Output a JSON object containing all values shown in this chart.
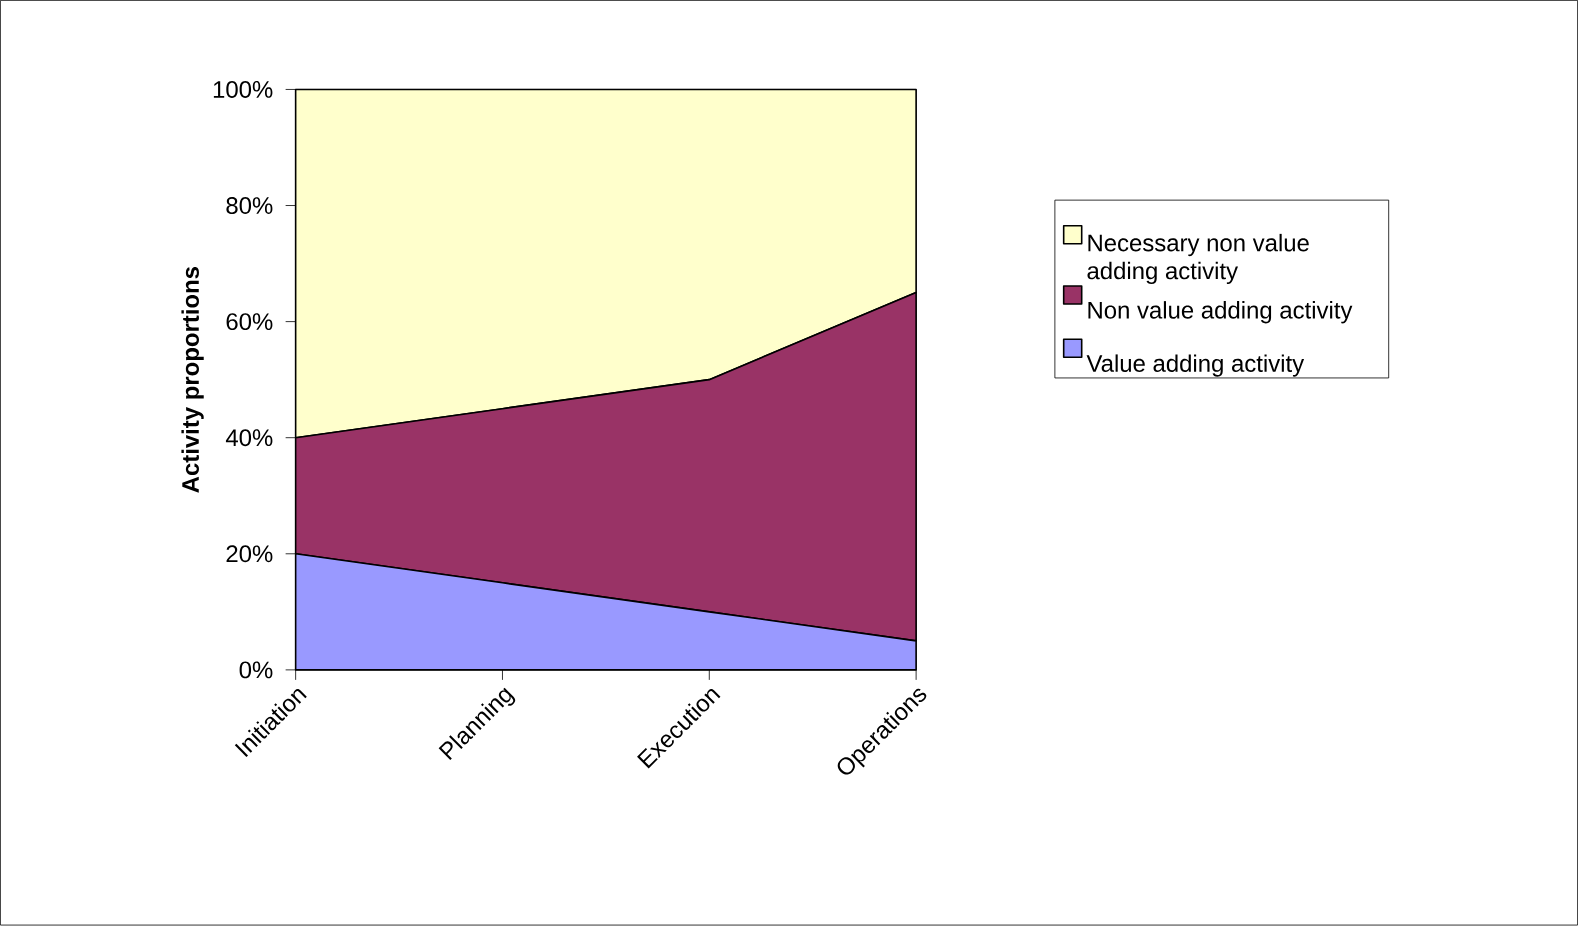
{
  "chart_data": {
    "type": "area",
    "stacked": true,
    "ylabel": "Activity proportions",
    "categories": [
      "Initiation",
      "Planning",
      "Execution",
      "Operations"
    ],
    "series": [
      {
        "name": "Value adding activity",
        "color": "#9999ff",
        "values": [
          20,
          15,
          10,
          5
        ]
      },
      {
        "name": "Non value adding activity",
        "color": "#993366",
        "values": [
          20,
          30,
          40,
          60
        ]
      },
      {
        "name": "Necessary non value adding activity",
        "color": "#ffffcc",
        "values": [
          60,
          55,
          50,
          35
        ]
      }
    ],
    "ylim": [
      0,
      100
    ],
    "yticks": [
      {
        "value": 0,
        "label": "0%"
      },
      {
        "value": 20,
        "label": "20%"
      },
      {
        "value": 40,
        "label": "40%"
      },
      {
        "value": 60,
        "label": "60%"
      },
      {
        "value": 80,
        "label": "80%"
      },
      {
        "value": 100,
        "label": "100%"
      }
    ],
    "legend": "right"
  }
}
